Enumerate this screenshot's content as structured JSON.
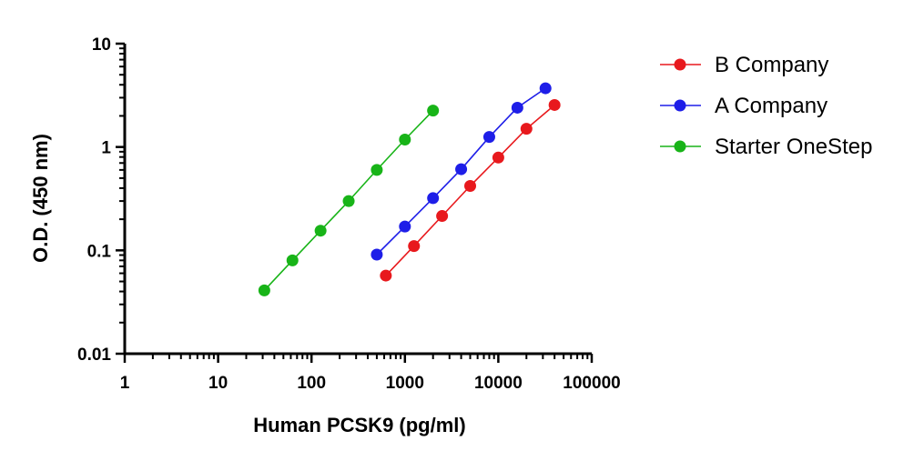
{
  "chart_data": {
    "type": "line",
    "xlabel": "Human PCSK9 (pg/ml)",
    "ylabel": "O.D. (450 nm)",
    "xscale": "log",
    "yscale": "log",
    "xlim": [
      1,
      100000
    ],
    "ylim": [
      0.01,
      10
    ],
    "xticks": [
      1,
      10,
      100,
      1000,
      10000,
      100000
    ],
    "xtick_labels": [
      "1",
      "10",
      "100",
      "1000",
      "10000",
      "100000"
    ],
    "yticks": [
      0.01,
      0.1,
      1,
      10
    ],
    "ytick_labels": [
      "0.01",
      "0.1",
      "1",
      "10"
    ],
    "grid": false,
    "legend_position": "right",
    "series": [
      {
        "name": "B Company",
        "color": "#e8191d",
        "x": [
          625,
          1250,
          2500,
          5000,
          10000,
          20000,
          40000
        ],
        "y": [
          0.057,
          0.11,
          0.215,
          0.42,
          0.79,
          1.5,
          2.55
        ]
      },
      {
        "name": "A Company",
        "color": "#1e1ee8",
        "x": [
          500,
          1000,
          2000,
          4000,
          8000,
          16000,
          32000
        ],
        "y": [
          0.091,
          0.17,
          0.32,
          0.61,
          1.25,
          2.4,
          3.7
        ]
      },
      {
        "name": "Starter OneStep",
        "color": "#18b418",
        "x": [
          31.25,
          62.5,
          125,
          250,
          500,
          1000,
          2000
        ],
        "y": [
          0.041,
          0.08,
          0.155,
          0.3,
          0.6,
          1.18,
          2.25
        ]
      }
    ]
  }
}
